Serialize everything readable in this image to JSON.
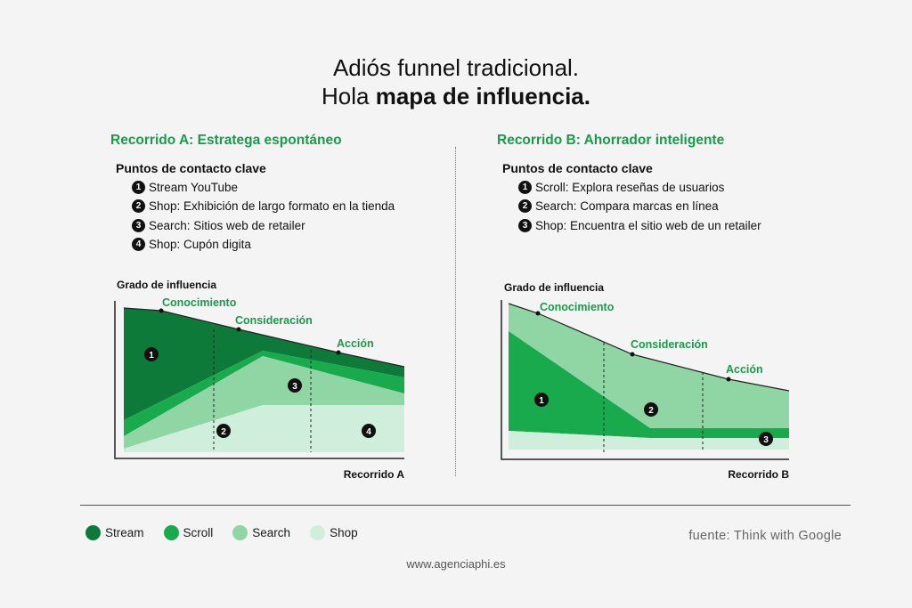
{
  "header": {
    "line1": "Adiós funnel tradicional.",
    "line2_prefix": "Hola ",
    "line2_bold": "mapa de influencia."
  },
  "journey_a": {
    "title": "Recorrido A: Estratega espontáneo",
    "touchpoints_title": "Puntos de contacto clave",
    "touchpoints": [
      {
        "num": "1",
        "text": "Stream YouTube"
      },
      {
        "num": "2",
        "text": "Shop: Exhibición de largo formato en la tienda"
      },
      {
        "num": "3",
        "text": "Search: Sitios web de retailer"
      },
      {
        "num": "4",
        "text": "Shop: Cupón digita"
      }
    ],
    "y_label": "Grado de influencia",
    "x_label": "Recorrido A",
    "stages": [
      "Conocimiento",
      "Consideración",
      "Acción"
    ],
    "markers": [
      "1",
      "2",
      "3",
      "4"
    ]
  },
  "journey_b": {
    "title": "Recorrido B: Ahorrador inteligente",
    "touchpoints_title": "Puntos de contacto clave",
    "touchpoints": [
      {
        "num": "1",
        "text": "Scroll: Explora reseñas de usuarios"
      },
      {
        "num": "2",
        "text": "Search: Compara marcas en línea"
      },
      {
        "num": "3",
        "text": "Shop: Encuentra el sitio web de un retailer"
      }
    ],
    "y_label": "Grado de influencia",
    "x_label": "Recorrido B",
    "stages": [
      "Conocimiento",
      "Consideración",
      "Acción"
    ],
    "markers": [
      "1",
      "2",
      "3"
    ]
  },
  "legend": [
    {
      "label": "Stream",
      "color": "#0e7a3a"
    },
    {
      "label": "Scroll",
      "color": "#1aaa4e"
    },
    {
      "label": "Search",
      "color": "#8fd6a4"
    },
    {
      "label": "Shop",
      "color": "#cfeedb"
    }
  ],
  "source": "fuente: Think with Google",
  "site": "www.agenciaphi.es"
}
